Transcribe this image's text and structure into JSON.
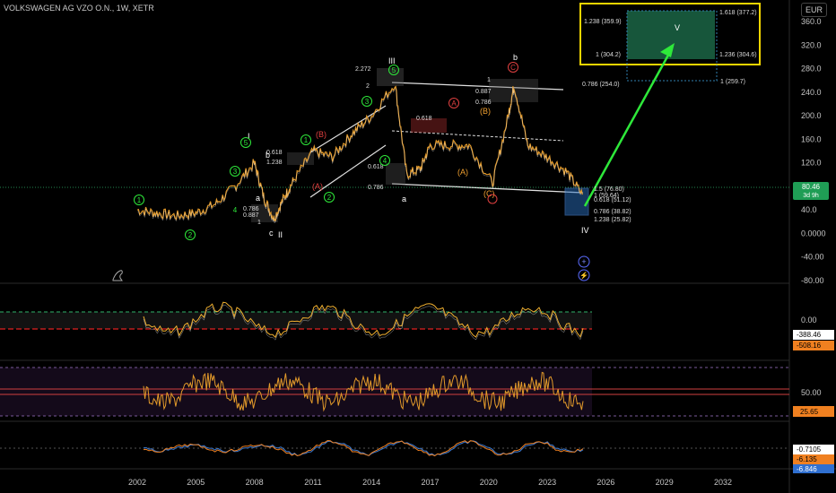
{
  "header": {
    "title": "VOLKSWAGEN AG VZO O.N., 1W, XETR",
    "currency": "EUR"
  },
  "chart_data": [
    {
      "type": "line",
      "x": [
        2002,
        2003,
        2004,
        2005,
        2006,
        2007,
        2008,
        2008.5,
        2009,
        2009.5,
        2010,
        2011,
        2012,
        2013,
        2014,
        2015.2,
        2015.8,
        2016.5,
        2017,
        2018,
        2019,
        2020.2,
        2021,
        2021.3,
        2022,
        2023,
        2024,
        2024.8
      ],
      "y": [
        40,
        35,
        30,
        35,
        50,
        80,
        120,
        60,
        25,
        60,
        90,
        140,
        130,
        170,
        200,
        255,
        100,
        110,
        150,
        150,
        150,
        85,
        200,
        252,
        150,
        130,
        105,
        66
      ],
      "ylim": [
        -80,
        380
      ],
      "y_ticks": [
        "360.0",
        "320.0",
        "280.0",
        "240.0",
        "200.0",
        "160.0",
        "120.0",
        "80.0",
        "40.0",
        "0.0000",
        "-40.00",
        "-80.00"
      ],
      "x_ticks": [
        "2002",
        "2005",
        "2008",
        "2011",
        "2014",
        "2017",
        "2020",
        "2023",
        "2026",
        "2029",
        "2032"
      ],
      "last_price": "80.46",
      "countdown": "3d 9h",
      "wave_labels": [
        "I",
        "II",
        "III",
        "IV",
        "V",
        "a",
        "b",
        "c",
        "a",
        "b",
        "1",
        "2",
        "3",
        "4",
        "5",
        "1",
        "2",
        "3",
        "4",
        "5",
        "(A)",
        "(B)",
        "(C)",
        "A",
        "B",
        "C"
      ],
      "fib_levels": [
        "1.238 (359.9)",
        "1 (304.2)",
        "1.618 (377.2)",
        "1.236 (304.6)",
        "0.786 (254.0)",
        "1 (259.7)",
        "2.272",
        "2",
        "1",
        "0.887",
        "0.786",
        "0.618",
        "1.238",
        "0.618",
        "0.786",
        "0.618",
        "0.786",
        "0.887",
        "1",
        "0.618",
        "1.5 (76.80)",
        "1 (59.64)",
        "0.618 (51.12)",
        "0.786 (38.82)",
        "1.238 (25.82)"
      ]
    },
    {
      "type": "area",
      "last_values": [
        "-388.46",
        "-508.16"
      ],
      "reference_line": "0.00"
    },
    {
      "type": "line",
      "last_value": "25.65",
      "reference_line": "50.00"
    },
    {
      "type": "line",
      "last_values": [
        "-0.7105",
        "-6.135",
        "-6.846"
      ]
    }
  ]
}
